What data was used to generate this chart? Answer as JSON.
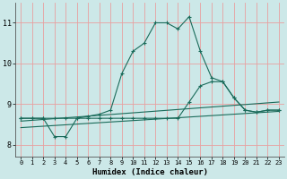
{
  "xlabel": "Humidex (Indice chaleur)",
  "background_color": "#cce8e8",
  "grid_color": "#e8a0a0",
  "line_color": "#1a6b5a",
  "xlim": [
    -0.5,
    23.5
  ],
  "ylim": [
    7.7,
    11.5
  ],
  "yticks": [
    8,
    9,
    10,
    11
  ],
  "xticks": [
    0,
    1,
    2,
    3,
    4,
    5,
    6,
    7,
    8,
    9,
    10,
    11,
    12,
    13,
    14,
    15,
    16,
    17,
    18,
    19,
    20,
    21,
    22,
    23
  ],
  "line1_x": [
    0,
    1,
    2,
    3,
    4,
    5,
    6,
    7,
    8,
    9,
    10,
    11,
    12,
    13,
    14,
    15,
    16,
    17,
    18,
    19,
    20,
    21,
    22,
    23
  ],
  "line1_y": [
    8.65,
    8.65,
    8.65,
    8.2,
    8.2,
    8.65,
    8.7,
    8.75,
    8.85,
    9.75,
    10.3,
    10.5,
    11.0,
    11.0,
    10.85,
    11.15,
    10.3,
    9.65,
    9.55,
    9.15,
    8.85,
    8.8,
    8.85,
    8.85
  ],
  "line2_x": [
    0,
    1,
    2,
    3,
    4,
    5,
    6,
    7,
    8,
    9,
    10,
    11,
    12,
    13,
    14,
    15,
    16,
    17,
    18,
    19,
    20,
    21,
    22,
    23
  ],
  "line2_y": [
    8.65,
    8.65,
    8.65,
    8.65,
    8.65,
    8.65,
    8.65,
    8.65,
    8.65,
    8.65,
    8.65,
    8.65,
    8.65,
    8.65,
    8.65,
    9.05,
    9.45,
    9.55,
    9.55,
    9.15,
    8.85,
    8.8,
    8.85,
    8.85
  ],
  "line3_x": [
    0,
    23
  ],
  "line3_y": [
    8.58,
    9.05
  ],
  "line4_x": [
    0,
    23
  ],
  "line4_y": [
    8.42,
    8.82
  ]
}
